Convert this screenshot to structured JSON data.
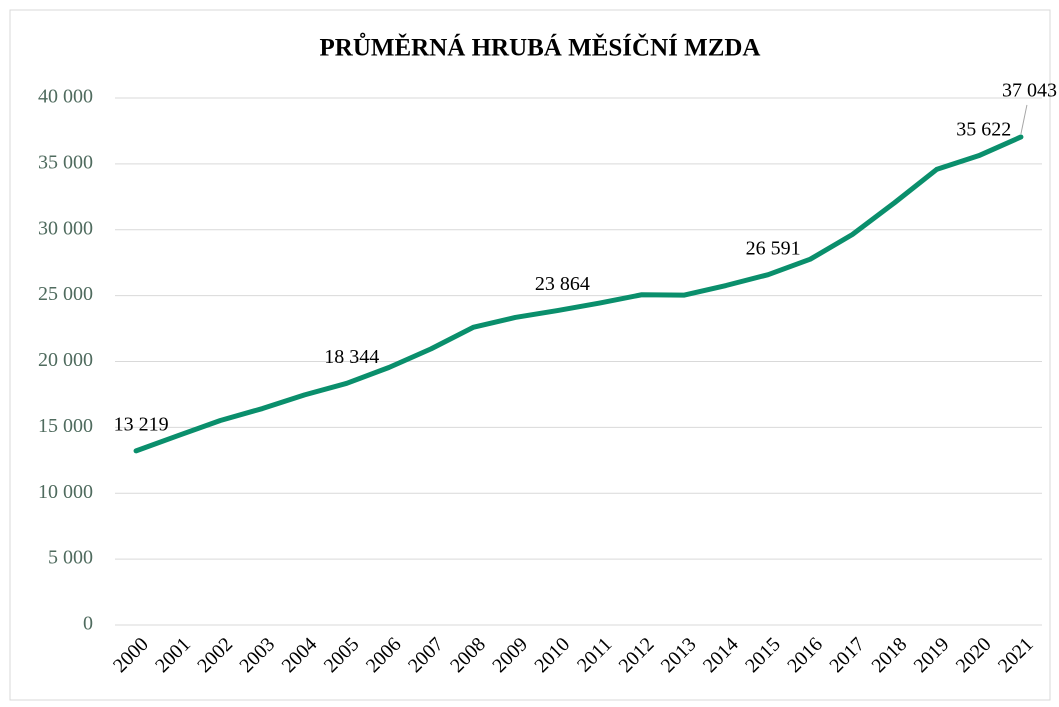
{
  "chart_data": {
    "type": "line",
    "title": "PRŮMĚRNÁ HRUBÁ MĚSÍČNÍ MZDA",
    "categories": [
      "2000",
      "2001",
      "2002",
      "2003",
      "2004",
      "2005",
      "2006",
      "2007",
      "2008",
      "2009",
      "2010",
      "2011",
      "2012",
      "2013",
      "2014",
      "2015",
      "2016",
      "2017",
      "2018",
      "2019",
      "2020",
      "2021"
    ],
    "series": [
      {
        "name": "Průměrná hrubá měsíční mzda",
        "color": "#0a8f6c",
        "values": [
          13219,
          14378,
          15524,
          16430,
          17466,
          18344,
          19546,
          20957,
          22592,
          23344,
          23864,
          24436,
          25067,
          25035,
          25768,
          26591,
          27764,
          29638,
          32051,
          34578,
          35622,
          37043
        ],
        "value_labels": [
          "13 219",
          null,
          null,
          null,
          null,
          "18 344",
          null,
          null,
          null,
          null,
          "23 864",
          null,
          null,
          null,
          null,
          "26 591",
          null,
          null,
          null,
          null,
          "35 622",
          "37 043"
        ]
      }
    ],
    "ylim": [
      0,
      40000
    ],
    "yticks": [
      0,
      {
        "value": 5000,
        "label": "5 000"
      },
      {
        "value": 10000,
        "label": "10 000"
      },
      {
        "value": 15000,
        "label": "15 000"
      },
      {
        "value": 20000,
        "label": "20 000"
      },
      {
        "value": 25000,
        "label": "25 000"
      },
      {
        "value": 30000,
        "label": "30 000"
      },
      {
        "value": 35000,
        "label": "35 000"
      },
      {
        "value": 40000,
        "label": "40 000"
      }
    ],
    "grid": true
  }
}
